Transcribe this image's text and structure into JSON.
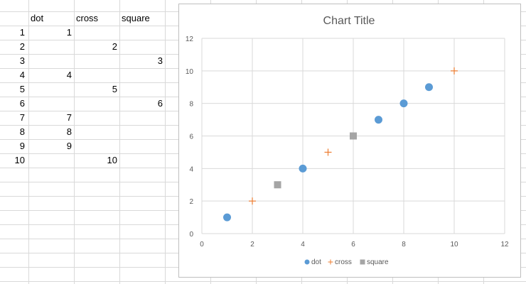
{
  "sheet": {
    "headers": [
      "dot",
      "cross",
      "square"
    ],
    "row_numbers": [
      "1",
      "2",
      "3",
      "4",
      "5",
      "6",
      "7",
      "8",
      "9",
      "10"
    ],
    "rows": [
      [
        "1",
        "",
        ""
      ],
      [
        "",
        "2",
        ""
      ],
      [
        "",
        "",
        "3"
      ],
      [
        "4",
        "",
        ""
      ],
      [
        "",
        "5",
        ""
      ],
      [
        "",
        "",
        "6"
      ],
      [
        "7",
        "",
        ""
      ],
      [
        "8",
        "",
        ""
      ],
      [
        "9",
        "",
        ""
      ],
      [
        "",
        "10",
        ""
      ]
    ]
  },
  "chart_data": {
    "type": "scatter",
    "title": "Chart Title",
    "xlim": [
      0,
      12
    ],
    "ylim": [
      0,
      12
    ],
    "xticks": [
      "0",
      "2",
      "4",
      "6",
      "8",
      "10",
      "12"
    ],
    "yticks": [
      "0",
      "2",
      "4",
      "6",
      "8",
      "10",
      "12"
    ],
    "grid": true,
    "legend_position": "bottom",
    "series": [
      {
        "name": "dot",
        "marker": "circle",
        "color": "#5b9bd5",
        "points": [
          [
            1,
            1
          ],
          [
            4,
            4
          ],
          [
            7,
            7
          ],
          [
            8,
            8
          ],
          [
            9,
            9
          ]
        ]
      },
      {
        "name": "cross",
        "marker": "plus",
        "color": "#ed7d31",
        "points": [
          [
            2,
            2
          ],
          [
            5,
            5
          ],
          [
            10,
            10
          ]
        ]
      },
      {
        "name": "square",
        "marker": "square",
        "color": "#a5a5a5",
        "points": [
          [
            3,
            3
          ],
          [
            6,
            6
          ]
        ]
      }
    ]
  }
}
